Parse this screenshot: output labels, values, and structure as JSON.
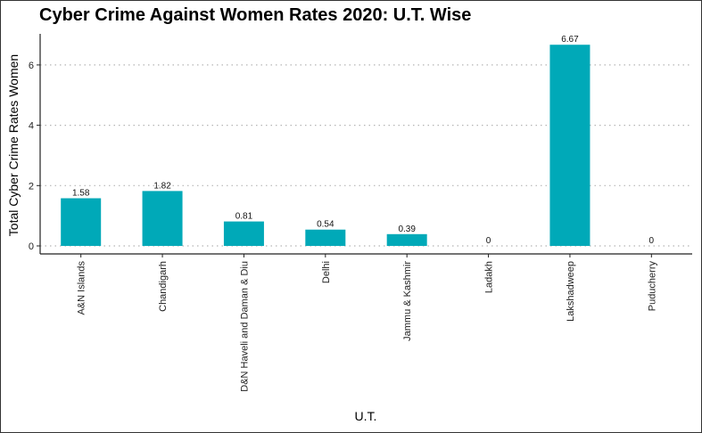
{
  "chart_data": {
    "type": "bar",
    "title": "Cyber Crime Against Women Rates 2020: U.T. Wise",
    "xlabel": "U.T.",
    "ylabel": "Total Cyber Crime Rates Women",
    "categories": [
      "A&N Islands",
      "Chandigarh",
      "D&N Haveli and Daman & Diu",
      "Delhi",
      "Jammu & Kashmir",
      "Ladakh",
      "Lakshadweep",
      "Puducherry"
    ],
    "values": [
      1.58,
      1.82,
      0.81,
      0.54,
      0.39,
      0,
      6.67,
      0
    ],
    "value_labels": [
      "1.58",
      "1.82",
      "0.81",
      "0.54",
      "0.39",
      "0",
      "6.67",
      "0"
    ],
    "yticks": [
      0,
      2,
      4,
      6
    ],
    "ylim": [
      0,
      7
    ],
    "grid": "horizontal dotted",
    "bar_color": "#00A9B8"
  }
}
